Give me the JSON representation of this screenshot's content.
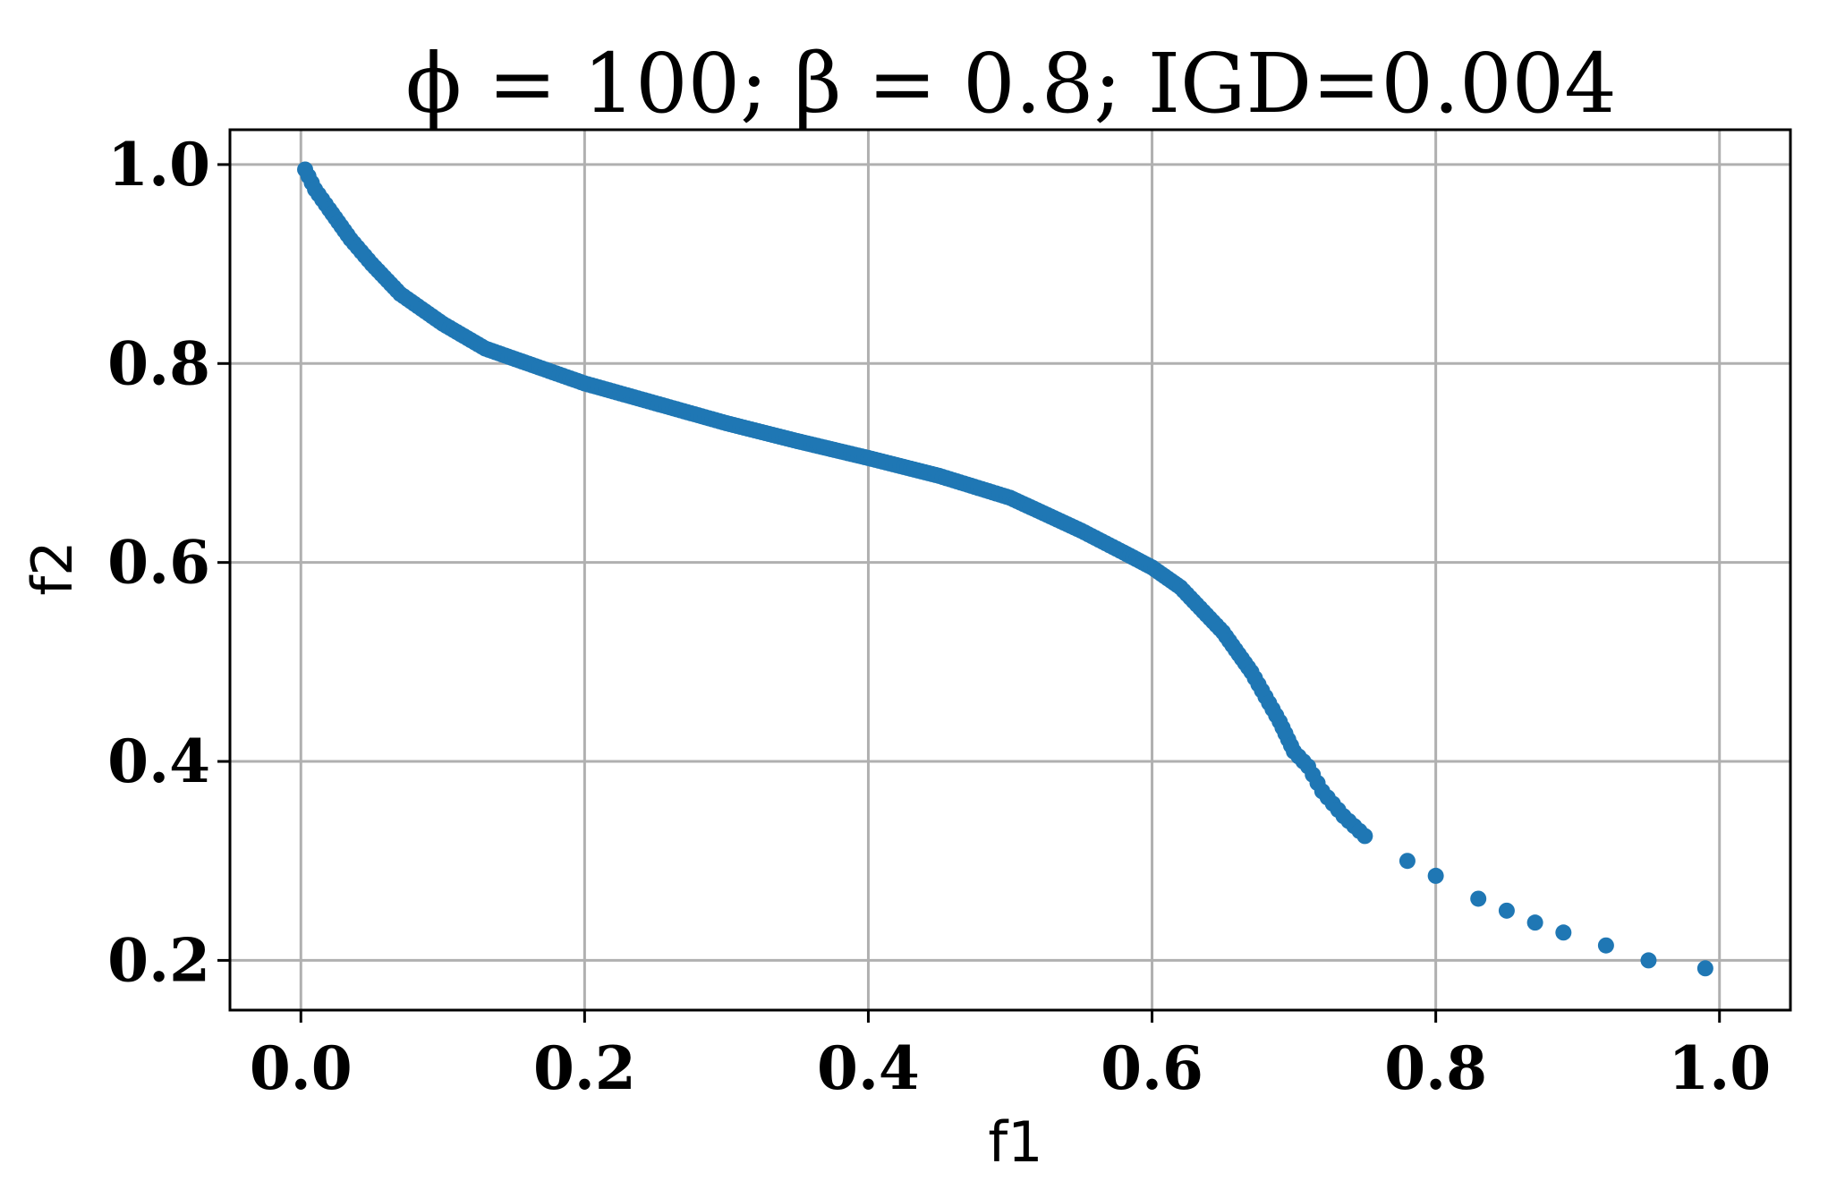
{
  "chart_data": {
    "type": "scatter",
    "title": "ϕ = 100; β = 0.8; IGD=0.004",
    "xlabel": "f1",
    "ylabel": "f2",
    "xlim": [
      -0.05,
      1.05
    ],
    "ylim": [
      0.15,
      1.035
    ],
    "xticks": [
      0.0,
      0.2,
      0.4,
      0.6,
      0.8,
      1.0
    ],
    "xtick_labels": [
      "0.0",
      "0.2",
      "0.4",
      "0.6",
      "0.8",
      "1.0"
    ],
    "yticks": [
      0.2,
      0.4,
      0.6,
      0.8,
      1.0
    ],
    "ytick_labels": [
      "0.2",
      "0.4",
      "0.6",
      "0.8",
      "1.0"
    ],
    "grid": true,
    "marker_color": "#1f77b4",
    "series": [
      {
        "x": [
          0.003,
          0.01,
          0.02,
          0.035,
          0.05,
          0.07,
          0.1,
          0.13,
          0.17,
          0.2,
          0.25,
          0.3,
          0.35,
          0.4,
          0.45,
          0.5,
          0.55,
          0.58,
          0.6,
          0.62,
          0.65,
          0.67,
          0.69,
          0.7,
          0.71,
          0.72,
          0.735,
          0.75,
          0.78,
          0.8,
          0.83,
          0.85,
          0.87,
          0.89,
          0.92,
          0.95,
          0.99
        ],
        "y": [
          0.995,
          0.975,
          0.955,
          0.925,
          0.9,
          0.87,
          0.84,
          0.815,
          0.795,
          0.78,
          0.76,
          0.74,
          0.722,
          0.705,
          0.687,
          0.665,
          0.632,
          0.61,
          0.595,
          0.575,
          0.53,
          0.49,
          0.44,
          0.41,
          0.395,
          0.37,
          0.345,
          0.325,
          0.3,
          0.285,
          0.262,
          0.25,
          0.238,
          0.228,
          0.215,
          0.2,
          0.192
        ]
      }
    ]
  }
}
